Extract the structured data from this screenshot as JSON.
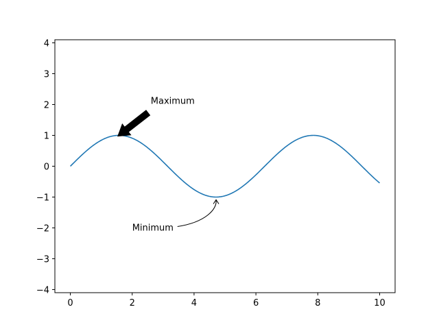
{
  "chart_data": {
    "type": "line",
    "title": "",
    "xlabel": "",
    "ylabel": "",
    "xlim": [
      -0.5,
      10.5
    ],
    "ylim": [
      -4.1,
      4.1
    ],
    "xticks": [
      0,
      2,
      4,
      6,
      8,
      10
    ],
    "yticks": [
      -4,
      -3,
      -2,
      -1,
      0,
      1,
      2,
      3,
      4
    ],
    "grid": false,
    "series": [
      {
        "function": "sin(x)",
        "x_range": [
          0,
          10
        ],
        "color": "#1f77b4"
      }
    ],
    "annotations": [
      {
        "text": "Maximum",
        "point": [
          1.5708,
          1.0
        ],
        "text_pos": [
          2.6,
          2.0
        ],
        "style": "fat-arrow",
        "color": "#000000"
      },
      {
        "text": "Minimum",
        "point": [
          4.7124,
          -1.0
        ],
        "text_pos": [
          2.0,
          -2.0
        ],
        "style": "curved-arrow",
        "color": "#000000"
      }
    ]
  }
}
